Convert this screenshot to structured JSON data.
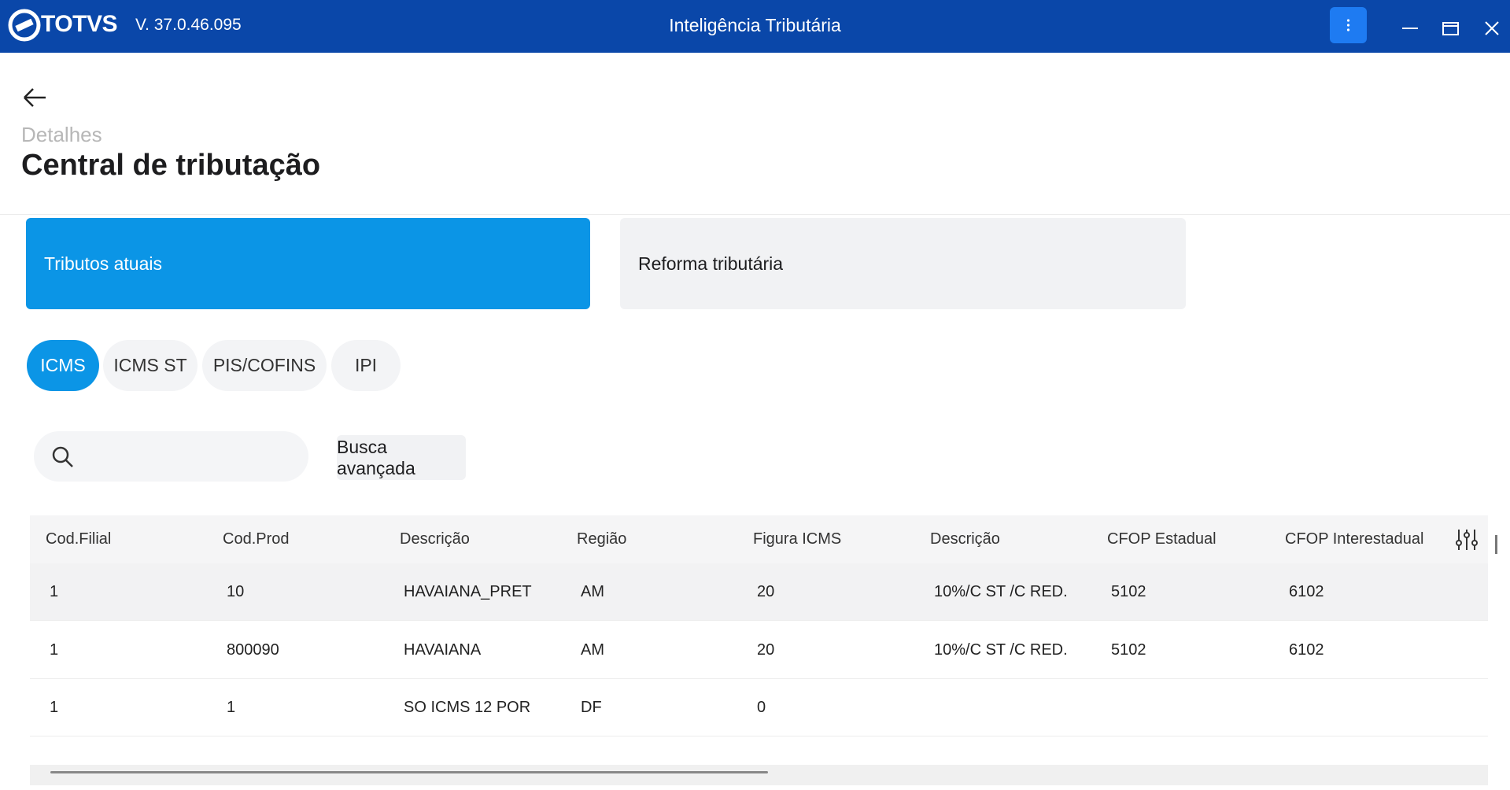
{
  "titlebar": {
    "brand": "TOTVS",
    "version": "V. 37.0.46.095",
    "title": "Inteligência Tributária"
  },
  "header": {
    "breadcrumb": "Detalhes",
    "title": "Central de tributação"
  },
  "cards": [
    "Tributos atuais",
    "Reforma tributária"
  ],
  "pills": [
    "ICMS",
    "ICMS ST",
    "PIS/COFINS",
    "IPI"
  ],
  "search": {
    "button": "Busca avançada"
  },
  "table": {
    "columns": [
      "Cod.Filial",
      "Cod.Prod",
      "Descrição",
      "Região",
      "Figura ICMS",
      "Descrição",
      "CFOP Estadual",
      "CFOP Interestadual"
    ],
    "rows": [
      [
        "1",
        "10",
        "HAVAIANA_PRET",
        "AM",
        "20",
        "10%/C ST /C RED.",
        "5102",
        "6102"
      ],
      [
        "1",
        "800090",
        "HAVAIANA",
        "AM",
        "20",
        "10%/C ST /C RED.",
        "5102",
        "6102"
      ],
      [
        "1",
        "1",
        "SO ICMS 12 POR",
        "DF",
        "0",
        null,
        null,
        null
      ]
    ]
  }
}
